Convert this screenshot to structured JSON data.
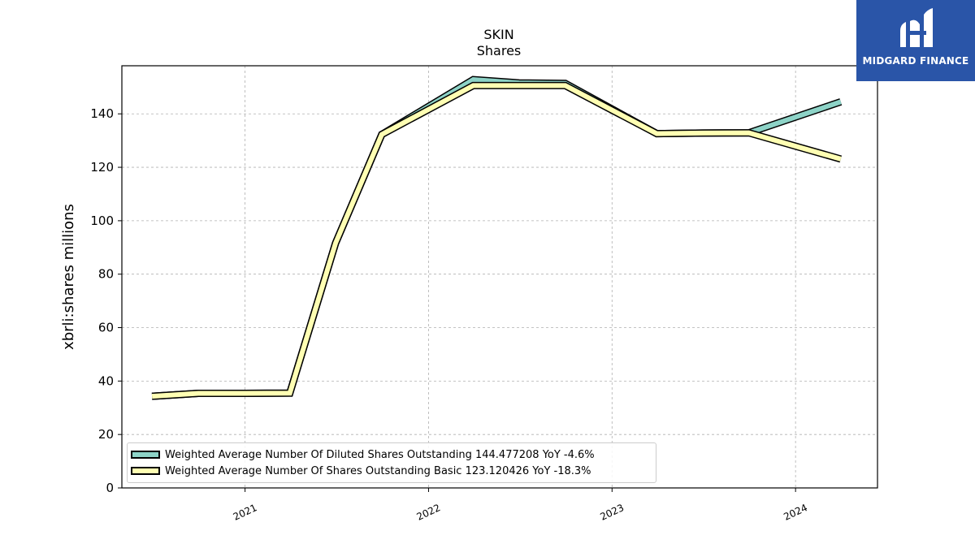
{
  "brand": {
    "name": "MIDGARD FINANCE",
    "logo_icon": "midgard-logo-icon",
    "background": "#2a55a8"
  },
  "chart_data": {
    "type": "line",
    "title": "SKIN",
    "subtitle": "Shares",
    "ylabel": "xbrli:shares millions",
    "xlabel": "",
    "ylim": [
      0,
      158
    ],
    "yticks": [
      0,
      20,
      40,
      60,
      80,
      100,
      120,
      140
    ],
    "xlim": [
      "2020-05-01",
      "2024-06-12"
    ],
    "xticks": [
      {
        "label": "2021",
        "date": "2021-01-01"
      },
      {
        "label": "2022",
        "date": "2022-01-01"
      },
      {
        "label": "2023",
        "date": "2023-01-01"
      },
      {
        "label": "2024",
        "date": "2024-01-01"
      }
    ],
    "grid": true,
    "legend_position": "lower-left",
    "series": [
      {
        "name": "Weighted Average Number Of Diluted Shares Outstanding",
        "legend_label": "Weighted Average Number Of Diluted Shares Outstanding  144.477208 YoY -4.6%",
        "color": "#8dd3c7",
        "points": [
          {
            "x": "2020-06-30",
            "y": 34.3
          },
          {
            "x": "2020-09-30",
            "y": 35.4
          },
          {
            "x": "2020-12-31",
            "y": 35.4
          },
          {
            "x": "2021-03-31",
            "y": 35.5
          },
          {
            "x": "2021-06-30",
            "y": 91.6
          },
          {
            "x": "2021-09-30",
            "y": 132.3
          },
          {
            "x": "2022-03-31",
            "y": 152.8
          },
          {
            "x": "2022-06-30",
            "y": 151.6
          },
          {
            "x": "2022-09-30",
            "y": 151.4
          },
          {
            "x": "2023-03-31",
            "y": 132.6
          },
          {
            "x": "2023-06-30",
            "y": 132.8
          },
          {
            "x": "2023-09-30",
            "y": 132.9
          },
          {
            "x": "2024-03-31",
            "y": 144.5
          }
        ]
      },
      {
        "name": "Weighted Average Number Of Shares Outstanding Basic",
        "legend_label": "Weighted Average Number Of Shares Outstanding Basic  123.120426 YoY -18.3%",
        "color": "#ffffb3",
        "points": [
          {
            "x": "2020-06-30",
            "y": 34.3
          },
          {
            "x": "2020-09-30",
            "y": 35.4
          },
          {
            "x": "2020-12-31",
            "y": 35.4
          },
          {
            "x": "2021-03-31",
            "y": 35.5
          },
          {
            "x": "2021-06-30",
            "y": 91.6
          },
          {
            "x": "2021-09-30",
            "y": 132.3
          },
          {
            "x": "2022-03-31",
            "y": 150.6
          },
          {
            "x": "2022-06-30",
            "y": 150.6
          },
          {
            "x": "2022-09-30",
            "y": 150.6
          },
          {
            "x": "2023-03-31",
            "y": 132.6
          },
          {
            "x": "2023-06-30",
            "y": 132.8
          },
          {
            "x": "2023-09-30",
            "y": 132.9
          },
          {
            "x": "2024-03-31",
            "y": 123.1
          }
        ]
      }
    ]
  }
}
